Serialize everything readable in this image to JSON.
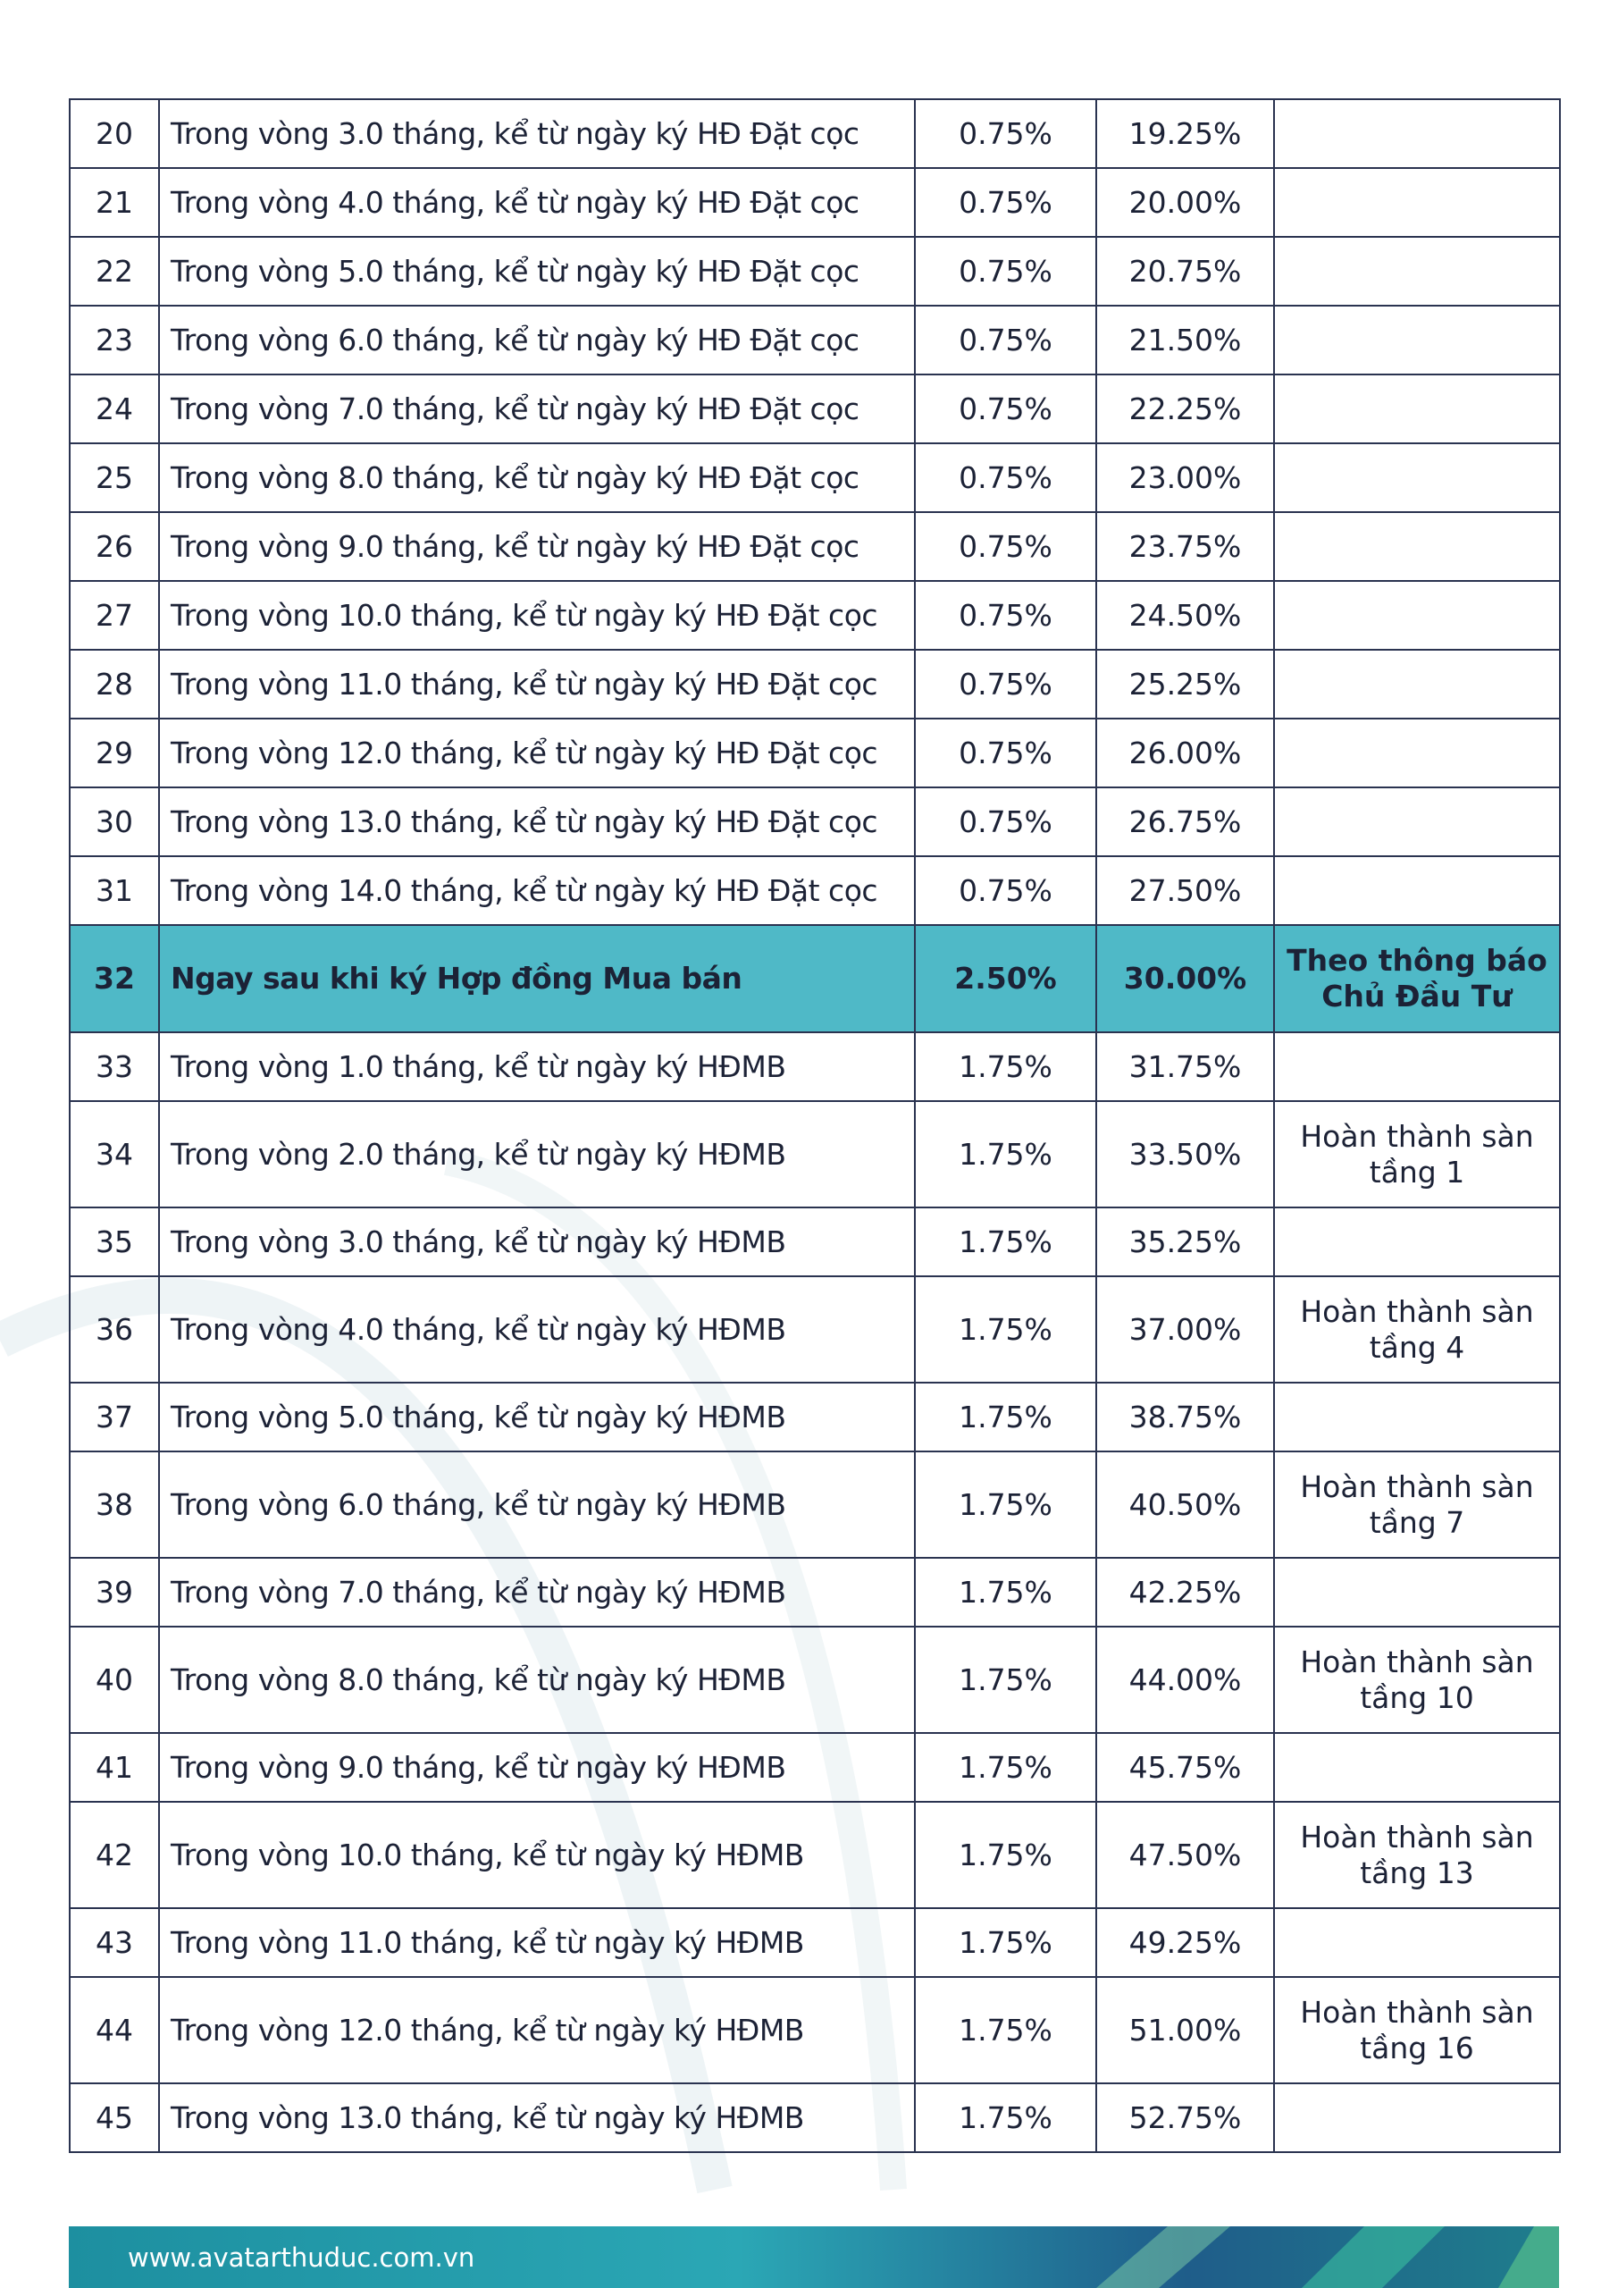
{
  "table": {
    "rows": [
      {
        "no": "20",
        "term": "Trong vòng 3.0 tháng, kể từ ngày ký HĐ Đặt cọc",
        "rate": "0.75%",
        "total": "19.25%"
      },
      {
        "no": "21",
        "term": "Trong vòng 4.0 tháng, kể từ ngày ký HĐ Đặt cọc",
        "rate": "0.75%",
        "total": "20.00%"
      },
      {
        "no": "22",
        "term": "Trong vòng 5.0 tháng, kể từ ngày ký HĐ Đặt cọc",
        "rate": "0.75%",
        "total": "20.75%"
      },
      {
        "no": "23",
        "term": "Trong vòng 6.0 tháng, kể từ ngày ký HĐ Đặt cọc",
        "rate": "0.75%",
        "total": "21.50%"
      },
      {
        "no": "24",
        "term": "Trong vòng 7.0 tháng, kể từ ngày ký HĐ Đặt cọc",
        "rate": "0.75%",
        "total": "22.25%"
      },
      {
        "no": "25",
        "term": "Trong vòng 8.0 tháng, kể từ ngày ký HĐ Đặt cọc",
        "rate": "0.75%",
        "total": "23.00%"
      },
      {
        "no": "26",
        "term": "Trong vòng 9.0 tháng, kể từ ngày ký HĐ Đặt cọc",
        "rate": "0.75%",
        "total": "23.75%"
      },
      {
        "no": "27",
        "term": "Trong vòng 10.0 tháng, kể từ ngày ký HĐ Đặt cọc",
        "rate": "0.75%",
        "total": "24.50%"
      },
      {
        "no": "28",
        "term": "Trong vòng 11.0 tháng, kể từ ngày ký HĐ Đặt cọc",
        "rate": "0.75%",
        "total": "25.25%"
      },
      {
        "no": "29",
        "term": "Trong vòng 12.0 tháng, kể từ ngày ký HĐ Đặt cọc",
        "rate": "0.75%",
        "total": "26.00%"
      },
      {
        "no": "30",
        "term": "Trong vòng 13.0 tháng, kể từ ngày ký HĐ Đặt cọc",
        "rate": "0.75%",
        "total": "26.75%"
      },
      {
        "no": "31",
        "term": "Trong vòng 14.0 tháng, kể từ ngày ký HĐ Đặt cọc",
        "rate": "0.75%",
        "total": "27.50%"
      },
      {
        "no": "32",
        "term": "Ngay sau khi ký Hợp đồng Mua bán",
        "rate": "2.50%",
        "total": "30.00%",
        "note": "Theo thông báo Chủ Đầu Tư",
        "highlight": true
      },
      {
        "no": "33",
        "term": "Trong vòng 1.0 tháng, kể từ ngày ký HĐMB",
        "rate": "1.75%",
        "total": "31.75%"
      },
      {
        "no": "34",
        "term": "Trong vòng 2.0 tháng, kể từ ngày ký HĐMB",
        "rate": "1.75%",
        "total": "33.50%",
        "note": "Hoàn thành sàn tầng 1"
      },
      {
        "no": "35",
        "term": "Trong vòng 3.0 tháng, kể từ ngày ký HĐMB",
        "rate": "1.75%",
        "total": "35.25%"
      },
      {
        "no": "36",
        "term": "Trong vòng 4.0 tháng, kể từ ngày ký HĐMB",
        "rate": "1.75%",
        "total": "37.00%",
        "note": "Hoàn thành sàn tầng 4"
      },
      {
        "no": "37",
        "term": "Trong vòng 5.0 tháng, kể từ ngày ký HĐMB",
        "rate": "1.75%",
        "total": "38.75%"
      },
      {
        "no": "38",
        "term": "Trong vòng 6.0 tháng, kể từ ngày ký HĐMB",
        "rate": "1.75%",
        "total": "40.50%",
        "note": "Hoàn thành sàn tầng 7"
      },
      {
        "no": "39",
        "term": "Trong vòng 7.0 tháng, kể từ ngày ký HĐMB",
        "rate": "1.75%",
        "total": "42.25%"
      },
      {
        "no": "40",
        "term": "Trong vòng 8.0 tháng, kể từ ngày ký HĐMB",
        "rate": "1.75%",
        "total": "44.00%",
        "note": "Hoàn thành sàn tầng 10"
      },
      {
        "no": "41",
        "term": "Trong vòng 9.0 tháng, kể từ ngày ký HĐMB",
        "rate": "1.75%",
        "total": "45.75%"
      },
      {
        "no": "42",
        "term": "Trong vòng 10.0 tháng, kể từ ngày ký HĐMB",
        "rate": "1.75%",
        "total": "47.50%",
        "note": "Hoàn thành sàn tầng 13"
      },
      {
        "no": "43",
        "term": "Trong vòng 11.0 tháng, kể từ ngày ký HĐMB",
        "rate": "1.75%",
        "total": "49.25%"
      },
      {
        "no": "44",
        "term": "Trong vòng 12.0 tháng, kể từ ngày ký HĐMB",
        "rate": "1.75%",
        "total": "51.00%",
        "note": "Hoàn thành sàn tầng 16"
      },
      {
        "no": "45",
        "term": "Trong vòng 13.0 tháng, kể từ ngày ký HĐMB",
        "rate": "1.75%",
        "total": "52.75%"
      }
    ]
  },
  "footer": {
    "url": "www.avatarthuduc.com.vn"
  }
}
